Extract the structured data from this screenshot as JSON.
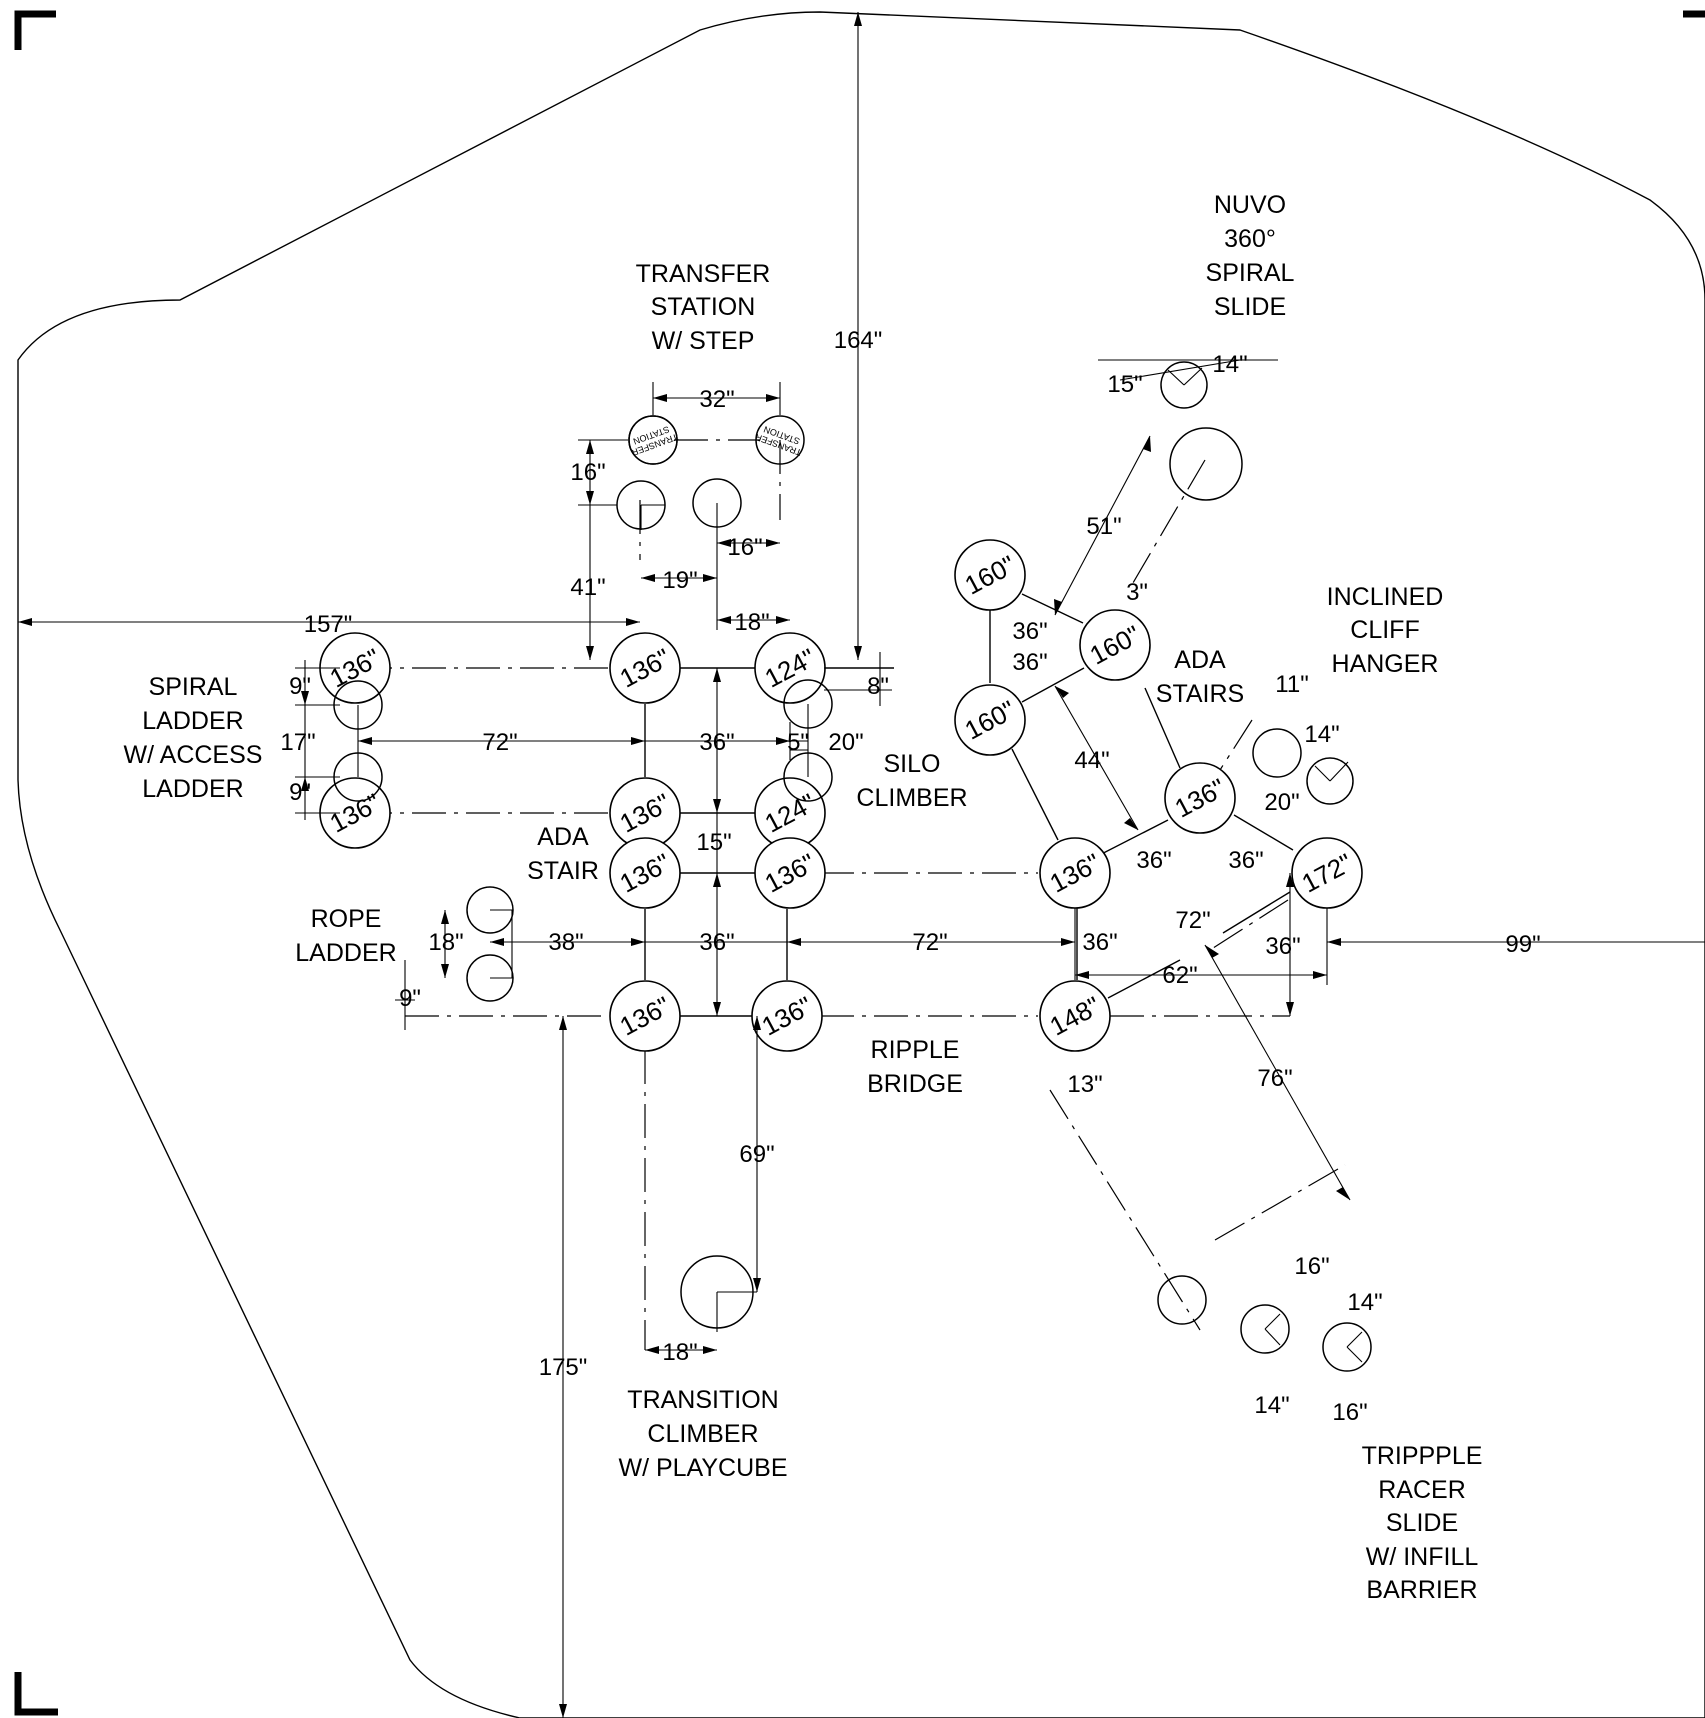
{
  "labels": {
    "transfer_station": [
      "TRANSFER",
      "STATION",
      "W/ STEP"
    ],
    "nuvo_slide": [
      "NUVO",
      "360°",
      "SPIRAL",
      "SLIDE"
    ],
    "inclined_cliff_hanger": [
      "INCLINED",
      "CLIFF",
      "HANGER"
    ],
    "ada_stairs": [
      "ADA",
      "STAIRS"
    ],
    "spiral_ladder": [
      "SPIRAL",
      "LADDER",
      "W/ ACCESS",
      "LADDER"
    ],
    "silo_climber": [
      "SILO",
      "CLIMBER"
    ],
    "ada_stair": [
      "ADA",
      "STAIR"
    ],
    "rope_ladder": [
      "ROPE",
      "LADDER"
    ],
    "ripple_bridge": [
      "RIPPLE",
      "BRIDGE"
    ],
    "transition_climber": [
      "TRANSITION",
      "CLIMBER",
      "W/ PLAYCUBE"
    ],
    "tripple_racer_slide": [
      "TRIPPPLE",
      "RACER",
      "SLIDE",
      "W/ INFILL",
      "BARRIER"
    ]
  },
  "transfer_tag": [
    "TRANSFER",
    "STATION"
  ],
  "posts": {
    "p1": "136\"",
    "p2": "136\"",
    "p3": "124\"",
    "p4": "136\"",
    "p5": "136\"",
    "p6": "124\"",
    "p7": "136\"",
    "p8": "136\"",
    "p9": "136\"",
    "p10": "136\"",
    "p11": "160\"",
    "p12": "160\"",
    "p13": "160\"",
    "p14": "136\"",
    "p15": "136\"",
    "p16": "172\"",
    "p17": "148\""
  },
  "dimensions": {
    "d164": "164\"",
    "d32": "32\"",
    "d16a": "16\"",
    "d16b": "16\"",
    "d41": "41\"",
    "d19": "19\"",
    "d18a": "18\"",
    "d157": "157\"",
    "d8": "8\"",
    "d9a": "9\"",
    "d17": "17\"",
    "d9b": "9\"",
    "d72a": "72\"",
    "d36a": "36\"",
    "d5": "5\"",
    "d20a": "20\"",
    "d15a": "15\"",
    "d18b": "18\"",
    "d38": "38\"",
    "d36b": "36\"",
    "d72b": "72\"",
    "d9c": "9\"",
    "d69": "69\"",
    "d18c": "18\"",
    "d175": "175\"",
    "d15b": "15\"",
    "d14a": "14\"",
    "d51": "51\"",
    "d3": "3\"",
    "d36c": "36\"",
    "d36d": "36\"",
    "d44": "44\"",
    "d11": "11\"",
    "d14b": "14\"",
    "d20b": "20\"",
    "d36e": "36\"",
    "d36f": "36\"",
    "d36g": "36\"",
    "d72c": "72\"",
    "d36h": "36\"",
    "d62": "62\"",
    "d99": "99\"",
    "d13": "13\"",
    "d76": "76\"",
    "d16c": "16\"",
    "d14c": "14\"",
    "d14d": "14\"",
    "d16d": "16\""
  }
}
